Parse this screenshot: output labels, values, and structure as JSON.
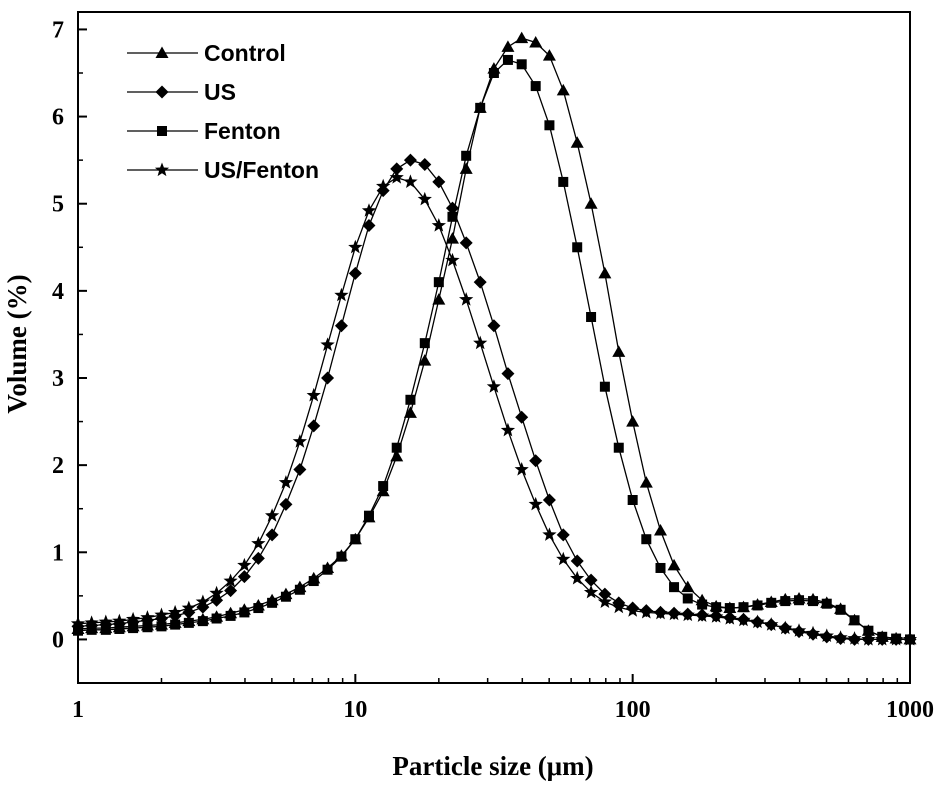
{
  "chart_data": {
    "type": "line",
    "title": "",
    "xlabel": "Particle size (μm)",
    "ylabel": "Volume (%)",
    "x_scale": "log",
    "xlim": [
      1,
      1000
    ],
    "ylim": [
      -0.5,
      7.2
    ],
    "x_ticks": [
      1,
      10,
      100,
      1000
    ],
    "x_tick_labels": [
      "1",
      "10",
      "100",
      "1000"
    ],
    "y_ticks": [
      0,
      1,
      2,
      3,
      4,
      5,
      6,
      7
    ],
    "y_tick_labels": [
      "0",
      "1",
      "2",
      "3",
      "4",
      "5",
      "6",
      "7"
    ],
    "grid": false,
    "legend_position": "top-left",
    "x": [
      1.0,
      1.12,
      1.26,
      1.41,
      1.58,
      1.78,
      2.0,
      2.24,
      2.51,
      2.82,
      3.16,
      3.55,
      3.98,
      4.47,
      5.01,
      5.62,
      6.31,
      7.08,
      7.94,
      8.91,
      10.0,
      11.2,
      12.6,
      14.1,
      15.8,
      17.8,
      20.0,
      22.4,
      25.1,
      28.2,
      31.6,
      35.5,
      39.8,
      44.7,
      50.1,
      56.2,
      63.1,
      70.8,
      79.4,
      89.1,
      100.0,
      112.0,
      126.0,
      141.0,
      158.0,
      178.0,
      200.0,
      224.0,
      251.0,
      282.0,
      316.0,
      355.0,
      398.0,
      447.0,
      501.0,
      562.0,
      631.0,
      708.0,
      794.0,
      891.0,
      1000.0
    ],
    "series": [
      {
        "name": "Control",
        "marker": "triangle",
        "values": [
          0.12,
          0.13,
          0.13,
          0.14,
          0.15,
          0.16,
          0.17,
          0.19,
          0.21,
          0.23,
          0.26,
          0.3,
          0.34,
          0.39,
          0.45,
          0.52,
          0.6,
          0.7,
          0.82,
          0.96,
          1.15,
          1.4,
          1.7,
          2.1,
          2.6,
          3.2,
          3.9,
          4.6,
          5.4,
          6.1,
          6.55,
          6.8,
          6.9,
          6.85,
          6.7,
          6.3,
          5.7,
          5.0,
          4.2,
          3.3,
          2.5,
          1.8,
          1.25,
          0.85,
          0.6,
          0.45,
          0.38,
          0.36,
          0.37,
          0.4,
          0.43,
          0.46,
          0.47,
          0.46,
          0.42,
          0.35,
          0.22,
          0.1,
          0.03,
          0.01,
          0.0
        ]
      },
      {
        "name": "US",
        "marker": "diamond",
        "values": [
          0.15,
          0.16,
          0.17,
          0.18,
          0.2,
          0.22,
          0.24,
          0.27,
          0.31,
          0.37,
          0.45,
          0.56,
          0.72,
          0.93,
          1.2,
          1.55,
          1.95,
          2.45,
          3.0,
          3.6,
          4.2,
          4.75,
          5.15,
          5.4,
          5.5,
          5.45,
          5.25,
          4.95,
          4.55,
          4.1,
          3.6,
          3.05,
          2.55,
          2.05,
          1.6,
          1.2,
          0.9,
          0.68,
          0.52,
          0.42,
          0.36,
          0.33,
          0.31,
          0.3,
          0.29,
          0.28,
          0.27,
          0.25,
          0.23,
          0.2,
          0.17,
          0.13,
          0.09,
          0.06,
          0.03,
          0.01,
          0.0,
          0.0,
          0.0,
          0.0,
          0.0
        ]
      },
      {
        "name": "Fenton",
        "marker": "square",
        "values": [
          0.1,
          0.11,
          0.11,
          0.12,
          0.13,
          0.14,
          0.15,
          0.17,
          0.19,
          0.21,
          0.24,
          0.27,
          0.31,
          0.36,
          0.42,
          0.49,
          0.57,
          0.67,
          0.8,
          0.95,
          1.15,
          1.42,
          1.76,
          2.2,
          2.75,
          3.4,
          4.1,
          4.85,
          5.55,
          6.1,
          6.5,
          6.65,
          6.6,
          6.35,
          5.9,
          5.25,
          4.5,
          3.7,
          2.9,
          2.2,
          1.6,
          1.15,
          0.82,
          0.6,
          0.47,
          0.4,
          0.37,
          0.36,
          0.37,
          0.39,
          0.42,
          0.44,
          0.45,
          0.44,
          0.41,
          0.34,
          0.22,
          0.1,
          0.03,
          0.01,
          0.0
        ]
      },
      {
        "name": "US/Fenton",
        "marker": "star",
        "values": [
          0.18,
          0.19,
          0.2,
          0.21,
          0.23,
          0.25,
          0.28,
          0.31,
          0.36,
          0.43,
          0.53,
          0.67,
          0.85,
          1.1,
          1.42,
          1.8,
          2.27,
          2.8,
          3.38,
          3.95,
          4.5,
          4.92,
          5.2,
          5.3,
          5.25,
          5.05,
          4.75,
          4.35,
          3.9,
          3.4,
          2.9,
          2.4,
          1.95,
          1.55,
          1.2,
          0.92,
          0.7,
          0.54,
          0.43,
          0.37,
          0.33,
          0.31,
          0.3,
          0.29,
          0.28,
          0.27,
          0.26,
          0.24,
          0.22,
          0.2,
          0.17,
          0.13,
          0.1,
          0.07,
          0.04,
          0.02,
          0.01,
          0.0,
          0.0,
          0.0,
          0.0
        ]
      }
    ]
  }
}
